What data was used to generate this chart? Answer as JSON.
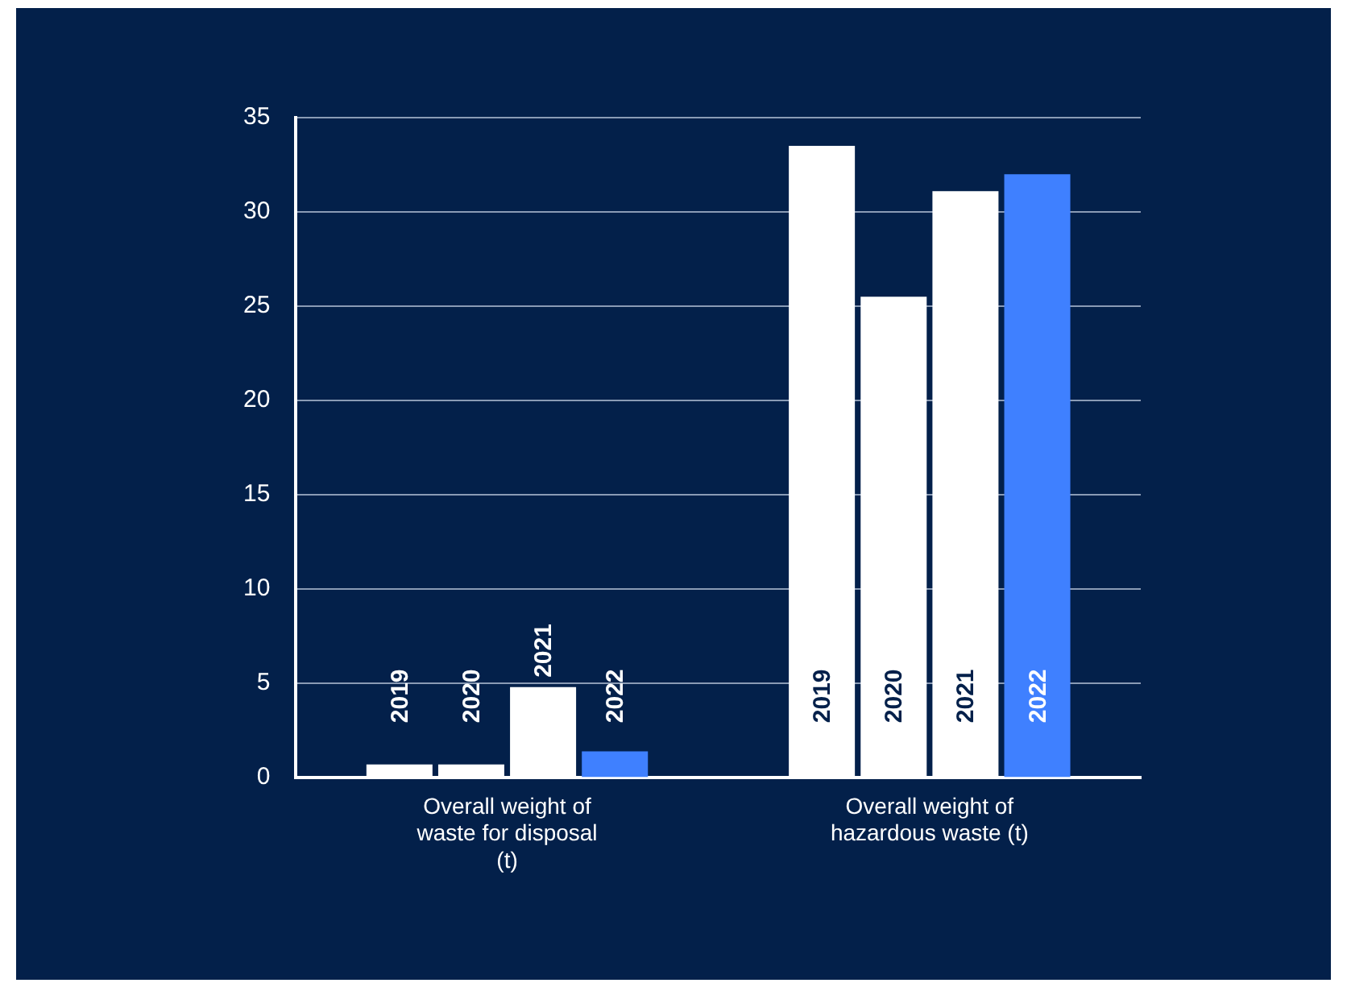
{
  "chart_data": {
    "type": "bar",
    "categories": [
      "Overall weight of waste for disposal (t)",
      "Overall weight of hazardous waste (t)"
    ],
    "series": [
      {
        "name": "2019",
        "color": "#ffffff",
        "values": [
          0.7,
          33.5
        ]
      },
      {
        "name": "2020",
        "color": "#ffffff",
        "values": [
          0.7,
          25.5
        ]
      },
      {
        "name": "2021",
        "color": "#ffffff",
        "values": [
          4.8,
          31.1
        ]
      },
      {
        "name": "2022",
        "color": "#3f80ff",
        "values": [
          1.4,
          32.0
        ]
      }
    ],
    "ylim": [
      0,
      35
    ],
    "yticks": [
      0,
      5,
      10,
      15,
      20,
      25,
      30,
      35
    ],
    "grid": "y",
    "legend": false
  }
}
